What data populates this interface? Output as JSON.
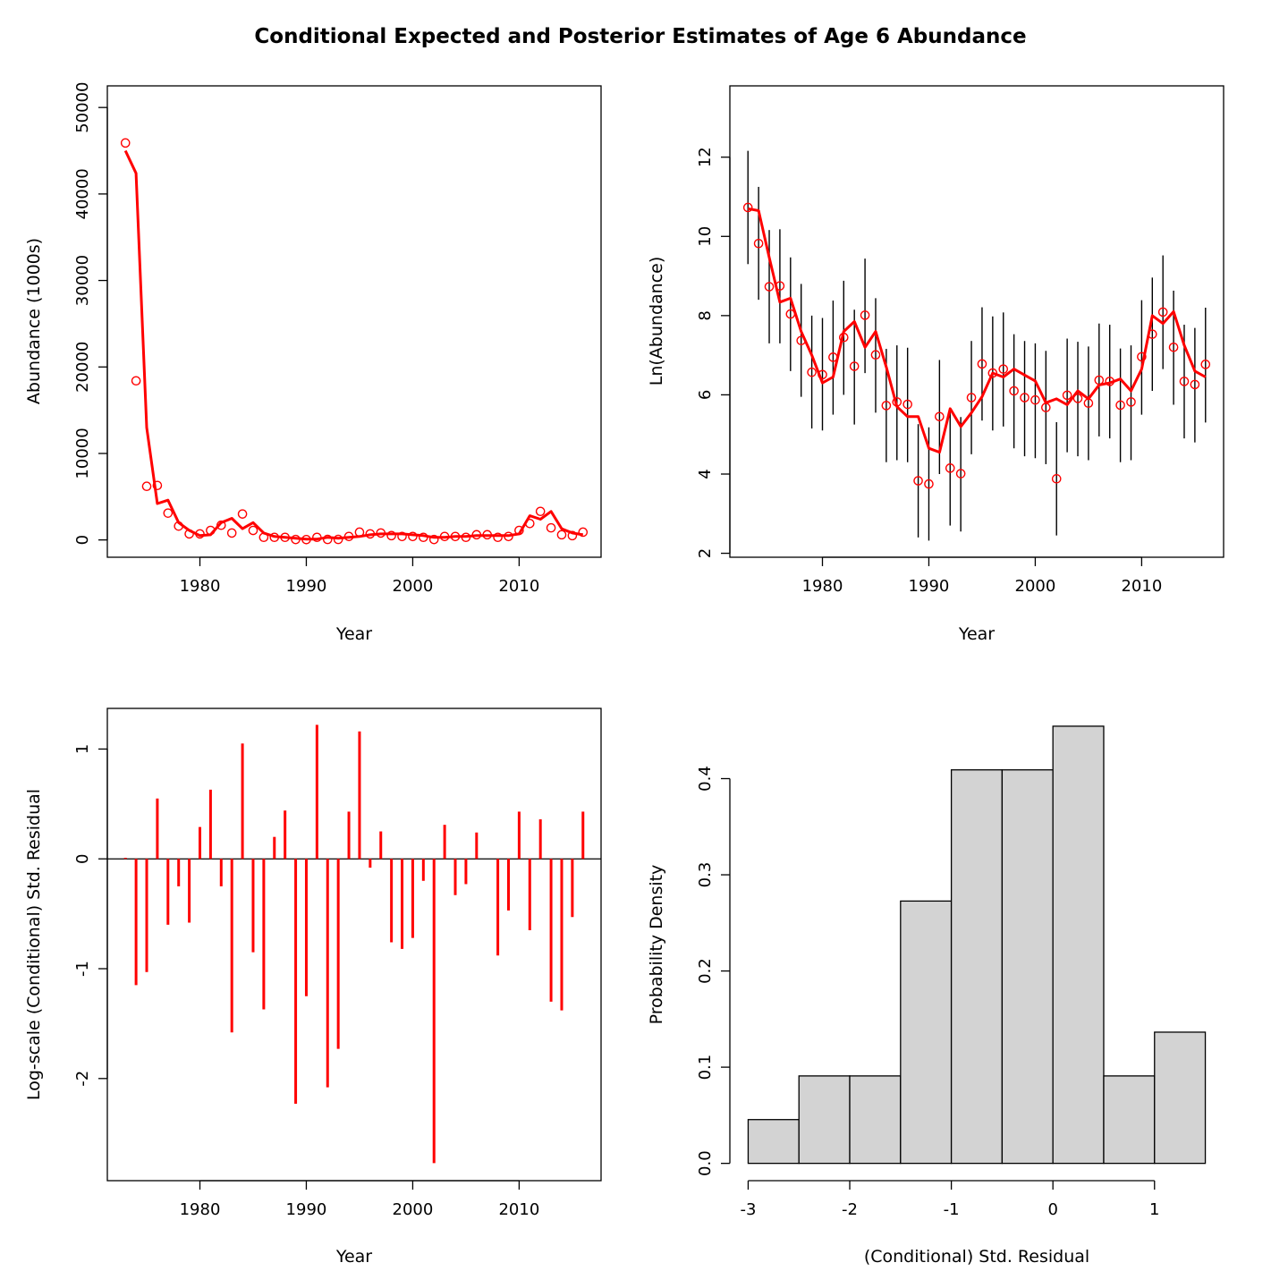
{
  "figure_title": "Conditional Expected and Posterior Estimates of Age 6 Abundance",
  "colors": {
    "model": "#ff0000",
    "interval": "#000000",
    "hist_fill": "#d3d3d3"
  },
  "chart_data": [
    {
      "id": "abundance",
      "type": "scatter",
      "xlabel": "Year",
      "ylabel": "Abundance (1000s)",
      "xlim": [
        1971.3,
        2017.7
      ],
      "ylim": [
        -2000,
        52500
      ],
      "xticks": [
        1980,
        1990,
        2000,
        2010
      ],
      "yticks": [
        0,
        10000,
        20000,
        30000,
        40000,
        50000
      ],
      "years": [
        1973,
        1974,
        1975,
        1976,
        1977,
        1978,
        1979,
        1980,
        1981,
        1982,
        1983,
        1984,
        1985,
        1986,
        1987,
        1988,
        1989,
        1990,
        1991,
        1992,
        1993,
        1994,
        1995,
        1996,
        1997,
        1998,
        1999,
        2000,
        2001,
        2002,
        2003,
        2004,
        2005,
        2006,
        2007,
        2008,
        2009,
        2010,
        2011,
        2012,
        2013,
        2014,
        2015,
        2016
      ],
      "posterior": [
        45900,
        18400,
        6200,
        6300,
        3100,
        1600,
        700,
        700,
        1100,
        1700,
        800,
        3000,
        1100,
        300,
        300,
        300,
        50,
        40,
        300,
        60,
        60,
        400,
        900,
        700,
        800,
        500,
        400,
        400,
        300,
        50,
        400,
        400,
        300,
        600,
        600,
        300,
        400,
        1100,
        1900,
        3300,
        1400,
        600,
        500,
        900
      ],
      "expected": [
        45000,
        42400,
        13000,
        4200,
        4600,
        2000,
        1100,
        500,
        600,
        2000,
        2500,
        1300,
        2000,
        800,
        400,
        300,
        200,
        100,
        100,
        300,
        200,
        300,
        400,
        600,
        700,
        700,
        700,
        600,
        500,
        300,
        300,
        400,
        400,
        500,
        500,
        500,
        500,
        700,
        2800,
        2400,
        3300,
        1300,
        800,
        600
      ]
    },
    {
      "id": "ln_abundance",
      "type": "scatter",
      "xlabel": "Year",
      "ylabel": "Ln(Abundance)",
      "xlim": [
        1971.3,
        2017.7
      ],
      "ylim": [
        1.9,
        13.8
      ],
      "xticks": [
        1980,
        1990,
        2000,
        2010
      ],
      "yticks": [
        2,
        4,
        6,
        8,
        10,
        12
      ],
      "years": [
        1973,
        1974,
        1975,
        1976,
        1977,
        1978,
        1979,
        1980,
        1981,
        1982,
        1983,
        1984,
        1985,
        1986,
        1987,
        1988,
        1989,
        1990,
        1991,
        1992,
        1993,
        1994,
        1995,
        1996,
        1997,
        1998,
        1999,
        2000,
        2001,
        2002,
        2003,
        2004,
        2005,
        2006,
        2007,
        2008,
        2009,
        2010,
        2011,
        2012,
        2013,
        2014,
        2015,
        2016
      ],
      "posterior": [
        10.73,
        9.82,
        8.73,
        8.75,
        8.04,
        7.37,
        6.57,
        6.51,
        6.95,
        7.45,
        6.72,
        8.01,
        7.01,
        5.73,
        5.82,
        5.76,
        3.83,
        3.75,
        5.45,
        4.15,
        4.01,
        5.93,
        6.78,
        6.55,
        6.65,
        6.1,
        5.93,
        5.87,
        5.68,
        3.88,
        5.99,
        5.91,
        5.79,
        6.37,
        6.34,
        5.74,
        5.82,
        6.96,
        7.53,
        8.09,
        7.2,
        6.34,
        6.26,
        6.77
      ],
      "lower": [
        9.3,
        8.4,
        7.3,
        7.3,
        6.6,
        5.95,
        5.15,
        5.1,
        5.5,
        6.0,
        5.25,
        6.55,
        5.55,
        4.3,
        4.35,
        4.3,
        2.4,
        2.32,
        4.0,
        2.7,
        2.55,
        4.5,
        5.35,
        5.1,
        5.2,
        4.65,
        4.45,
        4.4,
        4.25,
        2.45,
        4.55,
        4.45,
        4.35,
        4.95,
        4.9,
        4.3,
        4.35,
        5.5,
        6.1,
        6.65,
        5.75,
        4.9,
        4.8,
        5.3
      ],
      "upper": [
        12.16,
        11.25,
        10.16,
        10.18,
        9.47,
        8.8,
        8.0,
        7.94,
        8.38,
        8.88,
        8.15,
        9.44,
        8.44,
        7.16,
        7.25,
        7.19,
        5.26,
        5.18,
        6.88,
        5.58,
        5.44,
        7.36,
        8.21,
        7.98,
        8.08,
        7.53,
        7.36,
        7.3,
        7.11,
        5.31,
        7.42,
        7.34,
        7.22,
        7.8,
        7.77,
        7.17,
        7.25,
        8.39,
        8.96,
        9.52,
        8.63,
        7.77,
        7.69,
        8.2
      ],
      "expected": [
        10.7,
        10.65,
        9.47,
        8.34,
        8.44,
        7.6,
        7.0,
        6.3,
        6.45,
        7.6,
        7.85,
        7.2,
        7.6,
        6.7,
        5.7,
        5.45,
        5.45,
        4.65,
        4.55,
        5.65,
        5.2,
        5.55,
        5.95,
        6.55,
        6.45,
        6.65,
        6.5,
        6.35,
        5.8,
        5.9,
        5.75,
        6.1,
        5.9,
        6.25,
        6.3,
        6.4,
        6.1,
        6.65,
        8.0,
        7.8,
        8.1,
        7.25,
        6.6,
        6.45
      ]
    },
    {
      "id": "residuals",
      "type": "bar",
      "xlabel": "Year",
      "ylabel": "Log-scale (Conditional) Std. Residual",
      "xlim": [
        1971.3,
        2017.7
      ],
      "ylim": [
        -2.93,
        1.37
      ],
      "xticks": [
        1980,
        1990,
        2000,
        2010
      ],
      "yticks": [
        -2,
        -1,
        0,
        1
      ],
      "years": [
        1973,
        1974,
        1975,
        1976,
        1977,
        1978,
        1979,
        1980,
        1981,
        1982,
        1983,
        1984,
        1985,
        1986,
        1987,
        1988,
        1989,
        1990,
        1991,
        1992,
        1993,
        1994,
        1995,
        1996,
        1997,
        1998,
        1999,
        2000,
        2001,
        2002,
        2003,
        2004,
        2005,
        2006,
        2007,
        2008,
        2009,
        2010,
        2011,
        2012,
        2013,
        2014,
        2015,
        2016
      ],
      "values": [
        0.01,
        -1.15,
        -1.03,
        0.55,
        -0.6,
        -0.25,
        -0.58,
        0.29,
        0.63,
        -0.25,
        -1.58,
        1.05,
        -0.85,
        -1.37,
        0.2,
        0.44,
        -2.23,
        -1.25,
        1.22,
        -2.08,
        -1.73,
        0.43,
        1.16,
        -0.08,
        0.25,
        -0.76,
        -0.82,
        -0.72,
        -0.2,
        -2.77,
        0.31,
        -0.33,
        -0.23,
        0.24,
        0.0,
        -0.88,
        -0.47,
        0.43,
        -0.65,
        0.36,
        -1.3,
        -1.38,
        -0.53,
        0.43
      ]
    },
    {
      "id": "histogram",
      "type": "bar",
      "xlabel": "(Conditional) Std. Residual",
      "ylabel": "Probability Density",
      "xlim": [
        -3.18,
        1.68
      ],
      "ylim": [
        -0.018,
        0.473
      ],
      "xticks": [
        -3,
        -2,
        -1,
        0,
        1
      ],
      "yticks": [
        0.0,
        0.1,
        0.2,
        0.3,
        0.4
      ],
      "bin_edges": [
        -3.0,
        -2.5,
        -2.0,
        -1.5,
        -1.0,
        -0.5,
        0.0,
        0.5,
        1.0,
        1.5
      ],
      "density": [
        0.0455,
        0.0909,
        0.0909,
        0.2727,
        0.4091,
        0.4091,
        0.4545,
        0.0909,
        0.1364
      ]
    }
  ]
}
